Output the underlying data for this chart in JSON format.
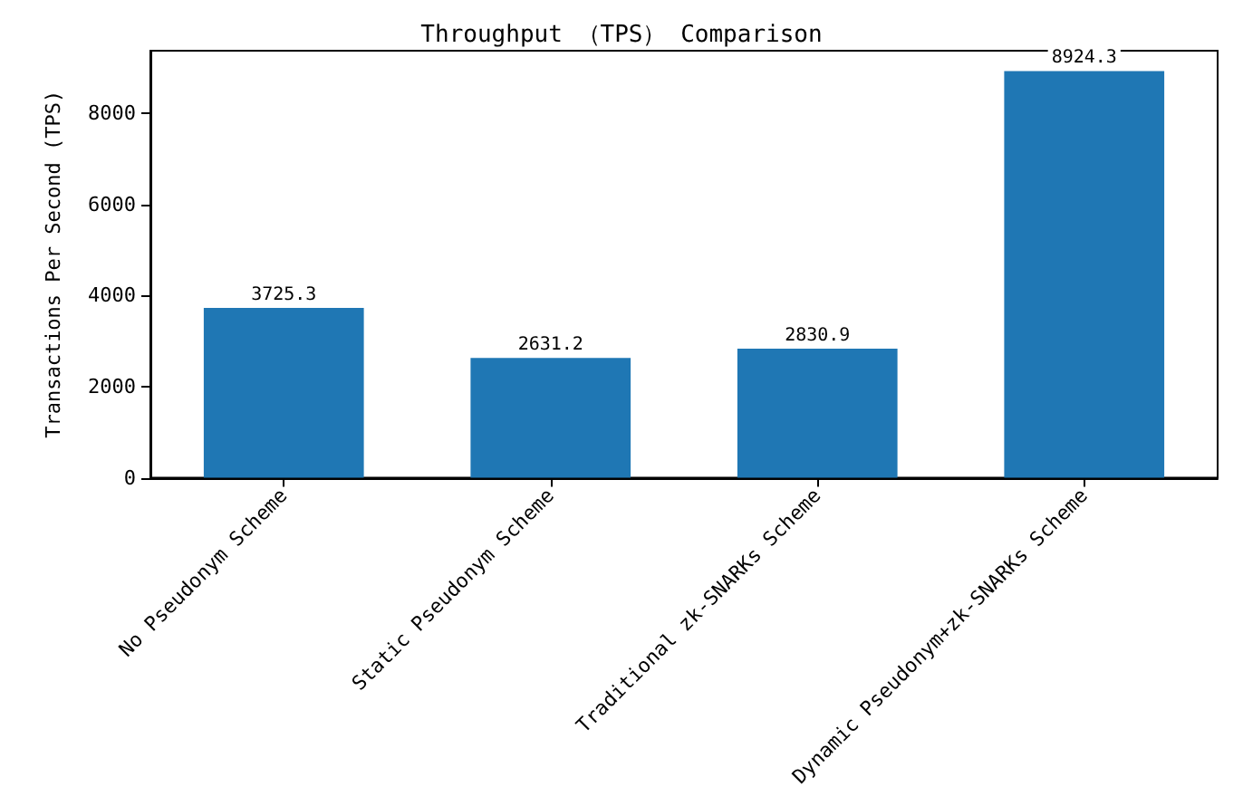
{
  "chart_data": {
    "type": "bar",
    "title": "Throughput （TPS） Comparison",
    "ylabel": "Transactions Per Second (TPS)",
    "categories": [
      "No Pseudonym Scheme",
      "Static Pseudonym Scheme",
      "Traditional zk-SNARKs Scheme",
      "Dynamic Pseudonym+zk-SNARKs Scheme"
    ],
    "values": [
      3725.3,
      2631.2,
      2830.9,
      8924.3
    ],
    "color": "#1f77b4",
    "data_labels": true,
    "ylim": [
      0,
      9370
    ],
    "yticks": [
      0,
      2000,
      4000,
      6000,
      8000
    ],
    "grid": false
  }
}
